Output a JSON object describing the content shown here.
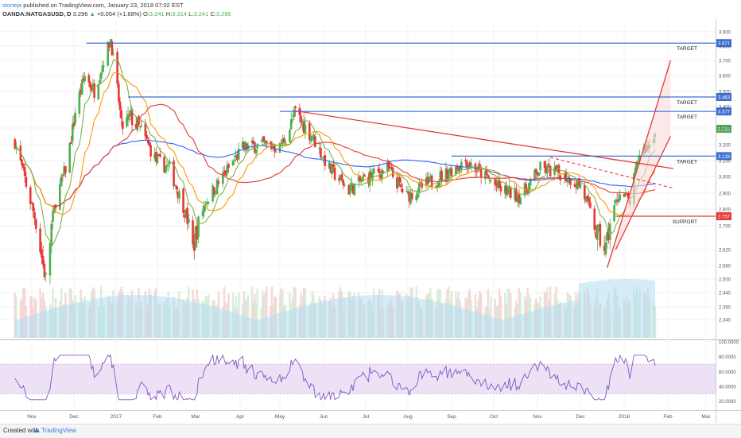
{
  "header": {
    "author": "stoneja",
    "published_text": "published on TradingView.com, January 23, 2018 07:02 EST",
    "symbol": "OANDA:NATGASUSD, D",
    "last": "3.296",
    "change": "+0.054 (+1.68%)",
    "open_label": "O:",
    "open": "3.241",
    "high_label": "H:",
    "high": "3.314",
    "low_label": "L:",
    "low": "3.241",
    "close_label": "C:",
    "close": "3.295"
  },
  "footer": {
    "created_with": "Created with",
    "brand": "TradingView"
  },
  "colors": {
    "up": "#4caf50",
    "down": "#e53935",
    "hline": "#3b6fd4",
    "support": "#e53935",
    "trend": "#e53935",
    "ma_blue": "#2962ff",
    "ma_red": "#e53935",
    "ma_orange": "#ff9800",
    "ma_green": "#7cb342",
    "rsi": "#7e57c2",
    "rsi_band": "#ede1f5",
    "volume": "#b3def2"
  },
  "annotations": {
    "target_1": "TARGET",
    "target_2": "TARGET",
    "target_3": "TARGET",
    "target_4": "TARGET",
    "support": "SUPPORT"
  },
  "chart_data": [
    {
      "type": "candlestick",
      "title": "OANDA:NATGASUSD, D",
      "x_ticks": [
        "Nov",
        "Dec",
        "2017",
        "Feb",
        "Mar",
        "Apr",
        "May",
        "Jun",
        "Jul",
        "Aug",
        "Sep",
        "Oct",
        "Nov",
        "Dec",
        "2018",
        "Feb",
        "Mar"
      ],
      "y_ticks": [
        "3.900",
        "3.800",
        "3.700",
        "3.600",
        "3.500",
        "3.400",
        "3.300",
        "3.200",
        "3.100",
        "3.000",
        "2.900",
        "2.800",
        "2.700",
        "2.620",
        "2.560",
        "2.500",
        "2.440",
        "2.390",
        "2.340"
      ],
      "ylim": [
        2.32,
        3.93
      ],
      "price_levels": [
        {
          "label": "TARGET",
          "value": 3.821,
          "tag": "3.821"
        },
        {
          "label": "TARGET",
          "value": 3.463,
          "tag": "3.463"
        },
        {
          "label": "TARGET",
          "value": 3.377,
          "tag": "3.377"
        },
        {
          "label": "TARGET",
          "value": 3.128,
          "tag": "3.128"
        },
        {
          "label": "SUPPORT",
          "value": 2.757,
          "tag": "2.757"
        }
      ],
      "last_price_tag": "3.295",
      "price_path": [
        {
          "date": "2016-10-20",
          "close": 3.22
        },
        {
          "date": "2016-10-28",
          "close": 2.95
        },
        {
          "date": "2016-11-04",
          "close": 2.72
        },
        {
          "date": "2016-11-11",
          "close": 2.5
        },
        {
          "date": "2016-11-18",
          "close": 2.85
        },
        {
          "date": "2016-11-25",
          "close": 3.05
        },
        {
          "date": "2016-12-02",
          "close": 3.38
        },
        {
          "date": "2016-12-09",
          "close": 3.6
        },
        {
          "date": "2016-12-16",
          "close": 3.5
        },
        {
          "date": "2016-12-28",
          "close": 3.85
        },
        {
          "date": "2017-01-05",
          "close": 3.3
        },
        {
          "date": "2017-01-12",
          "close": 3.35
        },
        {
          "date": "2017-01-20",
          "close": 3.28
        },
        {
          "date": "2017-01-31",
          "close": 3.1
        },
        {
          "date": "2017-02-10",
          "close": 3.05
        },
        {
          "date": "2017-02-20",
          "close": 2.82
        },
        {
          "date": "2017-02-27",
          "close": 2.62
        },
        {
          "date": "2017-03-08",
          "close": 2.85
        },
        {
          "date": "2017-03-20",
          "close": 3.0
        },
        {
          "date": "2017-04-03",
          "close": 3.18
        },
        {
          "date": "2017-04-17",
          "close": 3.2
        },
        {
          "date": "2017-05-01",
          "close": 3.18
        },
        {
          "date": "2017-05-12",
          "close": 3.37
        },
        {
          "date": "2017-05-24",
          "close": 3.25
        },
        {
          "date": "2017-06-05",
          "close": 3.05
        },
        {
          "date": "2017-06-19",
          "close": 2.92
        },
        {
          "date": "2017-07-03",
          "close": 3.0
        },
        {
          "date": "2017-07-17",
          "close": 3.05
        },
        {
          "date": "2017-07-31",
          "close": 2.88
        },
        {
          "date": "2017-08-14",
          "close": 2.95
        },
        {
          "date": "2017-08-28",
          "close": 3.02
        },
        {
          "date": "2017-09-11",
          "close": 3.1
        },
        {
          "date": "2017-09-22",
          "close": 3.02
        },
        {
          "date": "2017-10-06",
          "close": 2.92
        },
        {
          "date": "2017-10-20",
          "close": 2.88
        },
        {
          "date": "2017-11-03",
          "close": 3.05
        },
        {
          "date": "2017-11-17",
          "close": 3.02
        },
        {
          "date": "2017-12-01",
          "close": 2.95
        },
        {
          "date": "2017-12-12",
          "close": 2.68
        },
        {
          "date": "2017-12-19",
          "close": 2.62
        },
        {
          "date": "2017-12-28",
          "close": 2.9
        },
        {
          "date": "2018-01-05",
          "close": 2.85
        },
        {
          "date": "2018-01-12",
          "close": 3.15
        },
        {
          "date": "2018-01-19",
          "close": 3.2
        },
        {
          "date": "2018-01-23",
          "close": 3.295
        }
      ],
      "trendlines": [
        {
          "from": {
            "date": "2017-05-12",
            "value": 3.38
          },
          "to": {
            "date": "2018-02-05",
            "value": 3.05
          }
        },
        {
          "from": {
            "date": "2017-12-20",
            "value": 2.55
          },
          "to": {
            "date": "2018-02-03",
            "value": 3.7
          }
        },
        {
          "from": {
            "date": "2017-12-26",
            "value": 2.62
          },
          "to": {
            "date": "2018-02-03",
            "value": 3.25
          }
        }
      ]
    },
    {
      "type": "line",
      "title": "RSI",
      "y_ticks": [
        "100.0000",
        "80.0000",
        "60.0000",
        "40.0000",
        "20.0000"
      ],
      "ylim": [
        10,
        100
      ],
      "band": [
        30,
        70
      ],
      "last_value": 68
    }
  ]
}
